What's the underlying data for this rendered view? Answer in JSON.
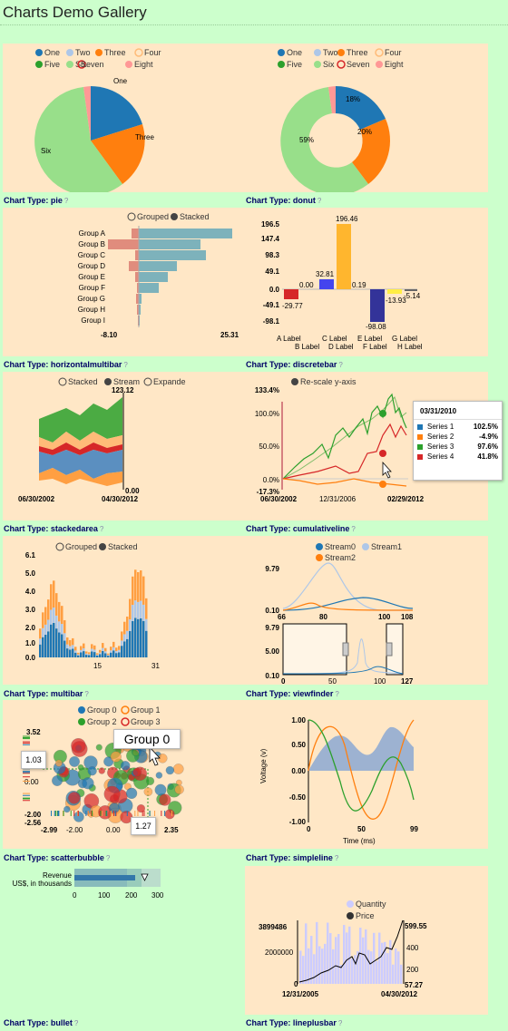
{
  "page_title": "Charts Demo Gallery",
  "chart_type_prefix": "Chart Type:",
  "colors": {
    "background": "#ccffcc",
    "panel": "#ffe7c6",
    "label": "#000066"
  },
  "charts": [
    {
      "id": "pie",
      "type_name": "pie",
      "legend": [
        "One",
        "Two",
        "Three",
        "Four",
        "Five",
        "Six",
        "Seven",
        "Eight"
      ],
      "slice_labels": [
        "One",
        "Three",
        "Six"
      ]
    },
    {
      "id": "donut",
      "type_name": "donut",
      "legend": [
        "One",
        "Two",
        "Three",
        "Four",
        "Five",
        "Six",
        "Seven",
        "Eight"
      ],
      "slice_labels": [
        "18%",
        "20%",
        "59%"
      ]
    },
    {
      "id": "horizontalmultibar",
      "type_name": "horizontalmultibar",
      "controls": [
        "Grouped",
        "Stacked"
      ],
      "categories": [
        "Group A",
        "Group B",
        "Group C",
        "Group D",
        "Group E",
        "Group F",
        "Group G",
        "Group H",
        "Group I"
      ],
      "axis": [
        "-8.10",
        "25.31"
      ]
    },
    {
      "id": "discretebar",
      "type_name": "discretebar",
      "y_ticks": [
        "196.5",
        "147.4",
        "98.3",
        "49.1",
        "0.0",
        "-49.1",
        "-98.1"
      ],
      "value_labels": [
        "-29.77",
        "0.00",
        "32.81",
        "196.46",
        "0.19",
        "-98.08",
        "-13.93",
        "-5.14"
      ],
      "x_labels_top": [
        "A Label",
        "C Label",
        "E Label",
        "G Label"
      ],
      "x_labels_bottom": [
        "B Label",
        "D Label",
        "F Label",
        "H Label"
      ]
    },
    {
      "id": "stackedarea",
      "type_name": "stackedarea",
      "controls": [
        "Stacked",
        "Stream",
        "Expande"
      ],
      "y_ticks": [
        "123.12",
        "0.00"
      ],
      "x_ticks": [
        "06/30/2002",
        "04/30/2012"
      ]
    },
    {
      "id": "cumulativeline",
      "type_name": "cumulativeline",
      "controls": [
        "Re-scale y-axis"
      ],
      "y_ticks": [
        "133.4%",
        "100.0%",
        "50.0%",
        "0.0%",
        "-17.3%"
      ],
      "x_ticks": [
        "06/30/2002",
        "12/31/2006",
        "02/29/2012"
      ],
      "tooltip": {
        "date": "03/31/2010",
        "rows": [
          {
            "name": "Series 1",
            "value": "102.5%"
          },
          {
            "name": "Series 2",
            "value": "-4.9%"
          },
          {
            "name": "Series 3",
            "value": "97.6%"
          },
          {
            "name": "Series 4",
            "value": "41.8%"
          }
        ]
      }
    },
    {
      "id": "multibar",
      "type_name": "multibar",
      "controls": [
        "Grouped",
        "Stacked"
      ],
      "y_ticks": [
        "6.1",
        "5.0",
        "4.0",
        "3.0",
        "2.0",
        "1.0",
        "0.0"
      ],
      "x_ticks": [
        "15",
        "31"
      ]
    },
    {
      "id": "viewfinder",
      "type_name": "viewfinder",
      "legend": [
        "Stream0",
        "Stream1",
        "Stream2"
      ],
      "top_y": [
        "9.79",
        "0.10"
      ],
      "top_x": [
        "66",
        "80",
        "100",
        "108"
      ],
      "bottom_y": [
        "9.79",
        "5.00",
        "0.10"
      ],
      "bottom_x": [
        "0",
        "50",
        "100",
        "127"
      ]
    },
    {
      "id": "scatterbubble",
      "type_name": "scatterbubble",
      "legend": [
        "Group 0",
        "Group 1",
        "Group 2",
        "Group 3"
      ],
      "tooltip_group": "Group 0",
      "y_ticks": [
        "3.52",
        "-2.00",
        "-2.56"
      ],
      "x_ticks": [
        "-2.99",
        "-2.00",
        "0.00",
        "2.35"
      ],
      "y_guide": "1.03",
      "x_guide": "1.27",
      "zero": "0.00"
    },
    {
      "id": "simpleline",
      "type_name": "simpleline",
      "y_ticks": [
        "1.00",
        "0.50",
        "0.00",
        "-0.50",
        "-1.00"
      ],
      "x_ticks": [
        "0",
        "50",
        "99"
      ],
      "ylabel": "Voltage (v)",
      "xlabel": "Time (ms)"
    },
    {
      "id": "bullet",
      "type_name": "bullet",
      "title": "Revenue",
      "subtitle": "US$, in thousands",
      "ticks": [
        "0",
        "100",
        "200",
        "300"
      ]
    },
    {
      "id": "lineplusbar",
      "type_name": "lineplusbar",
      "legend": [
        "Quantity",
        "Price"
      ],
      "left_ticks": [
        "3899486",
        "2000000",
        "0"
      ],
      "right_ticks": [
        "599.55",
        "400",
        "200",
        "57.27"
      ],
      "x_ticks": [
        "12/31/2005",
        "04/30/2012"
      ]
    }
  ]
}
